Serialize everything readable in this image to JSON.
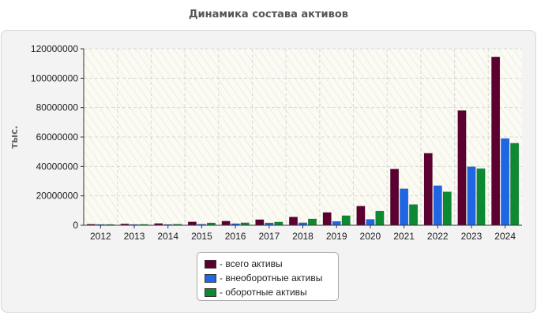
{
  "chart_data": {
    "type": "bar",
    "title": "Динамика состава активов",
    "ylabel": "тыс.",
    "xlabel": "",
    "ylim": [
      0,
      120000000
    ],
    "yticks": [
      "0",
      "20000000",
      "40000000",
      "60000000",
      "80000000",
      "100000000",
      "120000000"
    ],
    "categories": [
      "2012",
      "2013",
      "2014",
      "2015",
      "2016",
      "2017",
      "2018",
      "2019",
      "2020",
      "2021",
      "2022",
      "2023",
      "2024"
    ],
    "series": [
      {
        "name": "- всего активы",
        "color": "#5c0032",
        "values": [
          700000,
          900000,
          1200000,
          2300000,
          2800000,
          3800000,
          5600000,
          8700000,
          13000000,
          38200000,
          49000000,
          78000000,
          114500000
        ]
      },
      {
        "name": "- внеоборотные активы",
        "color": "#1f66e5",
        "values": [
          200000,
          300000,
          500000,
          700000,
          1100000,
          1600000,
          1700000,
          2600000,
          4000000,
          24800000,
          26900000,
          39800000,
          59000000
        ]
      },
      {
        "name": "- оборотные активы",
        "color": "#0b8a31",
        "values": [
          500000,
          600000,
          700000,
          1600000,
          1700000,
          2200000,
          4300000,
          6500000,
          9600000,
          14100000,
          22700000,
          38500000,
          55800000
        ]
      }
    ],
    "grid": true,
    "legend_position": "bottom"
  }
}
